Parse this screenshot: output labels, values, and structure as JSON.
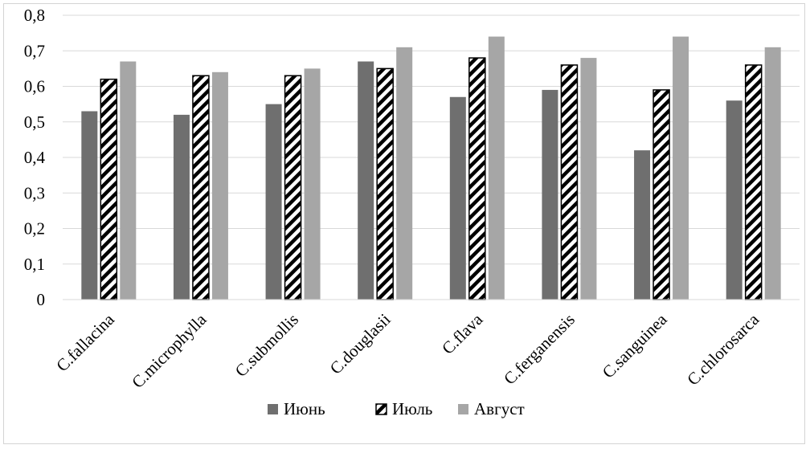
{
  "chart_data": {
    "type": "bar",
    "title": "",
    "xlabel": "",
    "ylabel": "",
    "ylim": [
      0,
      0.8
    ],
    "yticks": [
      "0",
      "0,1",
      "0,2",
      "0,3",
      "0,4",
      "0,5",
      "0,6",
      "0,7",
      "0,8"
    ],
    "grid": true,
    "legend_position": "bottom",
    "categories": [
      "C.fallacina",
      "C.microphylla",
      "C.submollis",
      "C.douglasii",
      "C.flava",
      "C.ferganensis",
      "C.sanguinea",
      "C.chlorosarca"
    ],
    "series": [
      {
        "name": "Июнь",
        "style": "solid",
        "color": "#6f6f6f",
        "values": [
          0.53,
          0.52,
          0.55,
          0.67,
          0.57,
          0.59,
          0.42,
          0.56
        ]
      },
      {
        "name": "Июль",
        "style": "hatched",
        "color": "#000000",
        "values": [
          0.62,
          0.63,
          0.63,
          0.65,
          0.68,
          0.66,
          0.59,
          0.66
        ]
      },
      {
        "name": "Август",
        "style": "solid",
        "color": "#a6a6a6",
        "values": [
          0.67,
          0.64,
          0.65,
          0.71,
          0.74,
          0.68,
          0.74,
          0.71
        ]
      }
    ]
  }
}
